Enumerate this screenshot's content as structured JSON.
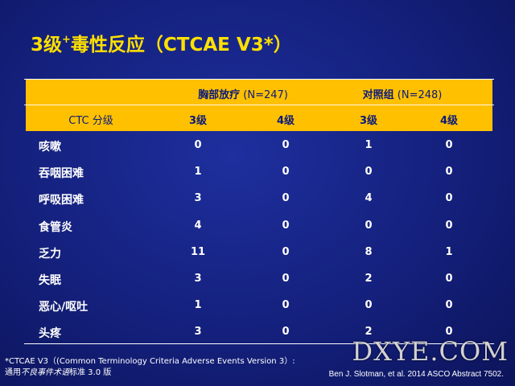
{
  "title": {
    "main": "3级",
    "sup": "+",
    "rest": "毒性反应（CTCAE V3*）"
  },
  "table": {
    "group_headers": [
      {
        "name": "胸部放疗",
        "n": " (N=247)"
      },
      {
        "name": "对照组",
        "n": " (N=248)"
      }
    ],
    "grade_header": "CTC 分级",
    "grade_columns": [
      "3级",
      "4级",
      "3级",
      "4级"
    ],
    "rows": [
      {
        "label": "咳嗽",
        "values": [
          "0",
          "0",
          "1",
          "0"
        ]
      },
      {
        "label": "吞咽困难",
        "values": [
          "1",
          "0",
          "0",
          "0"
        ]
      },
      {
        "label": "呼吸困难",
        "values": [
          "3",
          "0",
          "4",
          "0"
        ]
      },
      {
        "label": "食管炎",
        "values": [
          "4",
          "0",
          "0",
          "0"
        ]
      },
      {
        "label": "乏力",
        "values": [
          "11",
          "0",
          "8",
          "1"
        ]
      },
      {
        "label": "失眠",
        "values": [
          "3",
          "0",
          "2",
          "0"
        ]
      },
      {
        "label": "恶心/呕吐",
        "values": [
          "1",
          "0",
          "0",
          "0"
        ]
      },
      {
        "label": "头疼",
        "values": [
          "3",
          "0",
          "2",
          "0"
        ]
      }
    ]
  },
  "footnote": {
    "line1": "*CTCAE V3（(Common Terminology Criteria Adverse Events Version 3）:",
    "line2_a": "通用",
    "line2_b": "不良事件术语",
    "line2_c": "标准 3.0 版"
  },
  "citation": "Ben J. Slotman, et al. 2014 ASCO Abstract 7502.",
  "watermark": "DXYE.COM",
  "colors": {
    "background": "#14207c",
    "header_band": "#ffc000",
    "title": "#ffe000",
    "header_text": "#0a1a7a"
  }
}
